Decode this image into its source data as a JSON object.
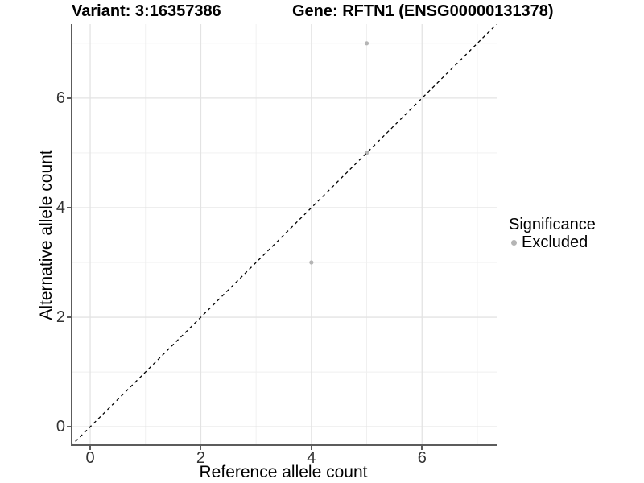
{
  "header": {
    "variant_title": "Variant: 3:16357386",
    "gene_title": "Gene: RFTN1 (ENSG00000131378)"
  },
  "chart_data": {
    "type": "scatter",
    "xlabel": "Reference allele count",
    "ylabel": "Alternative allele count",
    "xlim": [
      -0.35,
      7.35
    ],
    "ylim": [
      -0.35,
      7.35
    ],
    "xticks": [
      0,
      2,
      4,
      6
    ],
    "yticks": [
      0,
      2,
      4,
      6
    ],
    "xminor": [
      1,
      3,
      5,
      7
    ],
    "yminor": [
      1,
      3,
      5,
      7
    ],
    "grid": "major and minor, light gray on white",
    "identity_line": {
      "equation": "y = x",
      "style": "dashed",
      "color": "#000000"
    },
    "series": [
      {
        "name": "Excluded",
        "color": "#b5b5b5",
        "points": [
          {
            "x": 5,
            "y": 7
          },
          {
            "x": 5,
            "y": 5
          },
          {
            "x": 4,
            "y": 3
          }
        ]
      }
    ],
    "legend": {
      "title": "Significance",
      "position": "right",
      "items": [
        {
          "label": "Excluded",
          "color": "#b5b5b5"
        }
      ]
    }
  },
  "colors": {
    "background": "#ffffff",
    "axis_line": "#5c5c5c",
    "grid_major": "#e3e3e3",
    "grid_minor": "#efefef",
    "tick_label": "#333333",
    "point": "#b5b5b5",
    "identity_line": "#000000"
  }
}
